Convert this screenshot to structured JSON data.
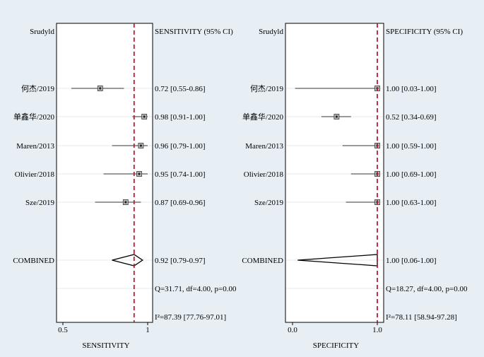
{
  "chart_data": [
    {
      "type": "forest",
      "header_label": "Srudyld",
      "header_value": "SENSITIVITY (95% CI)",
      "xlabel": "SENSITIVITY",
      "xlim": [
        0.5,
        1.0
      ],
      "xticks": [
        "0.5",
        "1"
      ],
      "xtick_values": [
        0.5,
        1.0
      ],
      "reference_line": 0.92,
      "studies": [
        {
          "label": "何杰/2019",
          "estimate": 0.72,
          "lower": 0.55,
          "upper": 0.86,
          "text": "0.72 [0.55-0.86]"
        },
        {
          "label": "单鑫华/2020",
          "estimate": 0.98,
          "lower": 0.91,
          "upper": 1.0,
          "text": "0.98 [0.91-1.00]"
        },
        {
          "label": "Maren/2013",
          "estimate": 0.96,
          "lower": 0.79,
          "upper": 1.0,
          "text": "0.96 [0.79-1.00]"
        },
        {
          "label": "Olivier/2018",
          "estimate": 0.95,
          "lower": 0.74,
          "upper": 1.0,
          "text": "0.95 [0.74-1.00]"
        },
        {
          "label": "Sze/2019",
          "estimate": 0.87,
          "lower": 0.69,
          "upper": 0.96,
          "text": "0.87 [0.69-0.96]"
        }
      ],
      "combined": {
        "label": "COMBINED",
        "estimate": 0.92,
        "lower": 0.79,
        "upper": 0.97,
        "text": "0.92 [0.79-0.97]"
      },
      "q_stat": "Q=31.71, df=4.00, p=0.00",
      "i2_stat": "I²=87.39 [77.76-97.01]"
    },
    {
      "type": "forest",
      "header_label": "Srudyld",
      "header_value": "SPECIFICITY (95% CI)",
      "xlabel": "SPECIFICITY",
      "xlim": [
        0.0,
        1.0
      ],
      "xticks": [
        "0.0",
        "1.0"
      ],
      "xtick_values": [
        0.0,
        1.0
      ],
      "reference_line": 1.0,
      "studies": [
        {
          "label": "何杰/2019",
          "estimate": 1.0,
          "lower": 0.03,
          "upper": 1.0,
          "text": "1.00 [0.03-1.00]"
        },
        {
          "label": "单鑫华/2020",
          "estimate": 0.52,
          "lower": 0.34,
          "upper": 0.69,
          "text": "0.52 [0.34-0.69]"
        },
        {
          "label": "Maren/2013",
          "estimate": 1.0,
          "lower": 0.59,
          "upper": 1.0,
          "text": "1.00 [0.59-1.00]"
        },
        {
          "label": "Olivier/2018",
          "estimate": 1.0,
          "lower": 0.69,
          "upper": 1.0,
          "text": "1.00 [0.69-1.00]"
        },
        {
          "label": "Sze/2019",
          "estimate": 1.0,
          "lower": 0.63,
          "upper": 1.0,
          "text": "1.00 [0.63-1.00]"
        }
      ],
      "combined": {
        "label": "COMBINED",
        "estimate": 1.0,
        "lower": 0.06,
        "upper": 1.0,
        "text": "1.00 [0.06-1.00]"
      },
      "q_stat": "Q=18.27, df=4.00, p=0.00",
      "i2_stat": "I²=78.11 [58.94-97.28]"
    }
  ],
  "colors": {
    "background": "#e7eff5",
    "plot_background": "#ffffff",
    "reference_line": "#c0182f",
    "marker": "#555555",
    "gridline": "#e3ebf0"
  }
}
